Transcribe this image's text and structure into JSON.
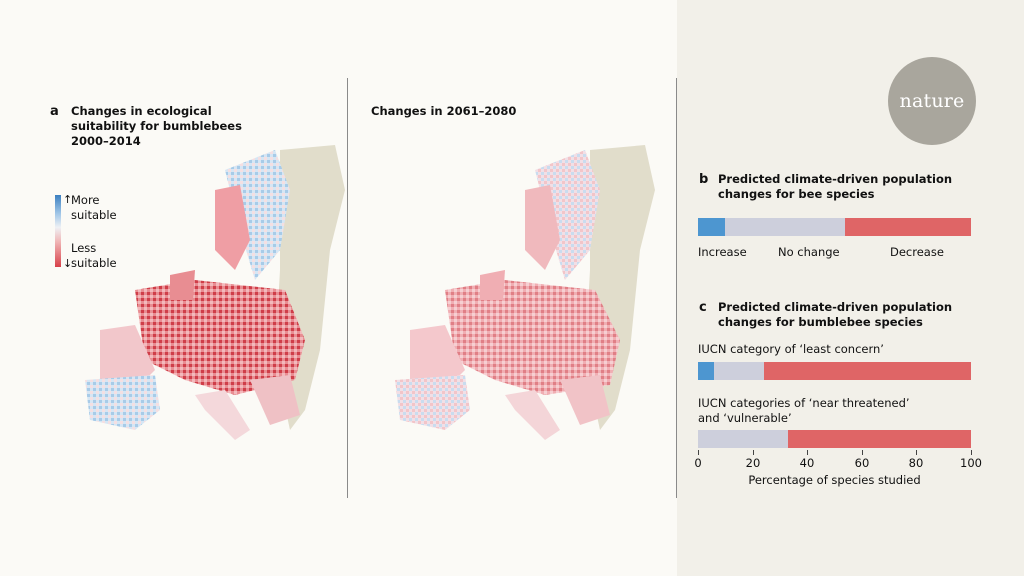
{
  "panel_a": {
    "letter": "a",
    "title_lines": [
      "Changes in ecological",
      "suitability for bumblebees",
      "2000–2014"
    ],
    "second_title": "Changes in 2061–2080",
    "legend": {
      "more_lines": [
        "More",
        "suitable"
      ],
      "less_lines": [
        "Less",
        "suitable"
      ],
      "colors": {
        "more": "#3b7fc0",
        "less": "#d8414a",
        "neutral": "#eef1f5"
      }
    }
  },
  "logo": "nature",
  "chart_data": [
    {
      "type": "bar",
      "orientation": "horizontal-stacked",
      "letter": "b",
      "title_lines": [
        "Predicted climate-driven population",
        "changes for bee species"
      ],
      "series": [
        {
          "name": "Increase",
          "values": [
            10
          ]
        },
        {
          "name": "No change",
          "values": [
            44
          ]
        },
        {
          "name": "Decrease",
          "values": [
            46
          ]
        }
      ],
      "colors": [
        "#4d96d0",
        "#cdcfdc",
        "#df6566"
      ]
    },
    {
      "type": "bar",
      "orientation": "horizontal-stacked",
      "letter": "c",
      "title_lines": [
        "Predicted climate-driven population",
        "changes for bumblebee species"
      ],
      "categories": [
        "IUCN category of ‘least concern’",
        "IUCN categories of ‘near threatened’\nand ‘vulnerable’"
      ],
      "category_lines": [
        [
          "IUCN category of ‘least concern’"
        ],
        [
          "IUCN categories of ‘near threatened’",
          "and ‘vulnerable’"
        ]
      ],
      "series": [
        {
          "name": "Increase",
          "values": [
            6,
            0
          ]
        },
        {
          "name": "No change",
          "values": [
            18,
            33
          ]
        },
        {
          "name": "Decrease",
          "values": [
            76,
            67
          ]
        }
      ],
      "colors": [
        "#4d96d0",
        "#cdcfdc",
        "#df6566"
      ],
      "xlim": [
        0,
        100
      ],
      "xticks": [
        0,
        20,
        40,
        60,
        80,
        100
      ],
      "xlabel": "Percentage of species studied"
    }
  ]
}
